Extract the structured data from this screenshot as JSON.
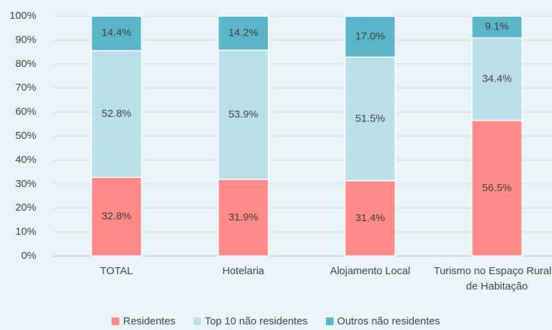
{
  "chart_data": {
    "type": "stacked_bar",
    "categories": [
      "TOTAL",
      "Hotelaria",
      "Alojamento Local",
      "Turismo no Espaço Rural e de Habitação"
    ],
    "series": [
      {
        "name": "Residentes",
        "color": "#ff8a8a",
        "values": [
          32.8,
          31.9,
          31.4,
          56.5
        ],
        "value_labels": [
          "32.8%",
          "31.9%",
          "31.4%",
          "56.5%"
        ]
      },
      {
        "name": "Top 10 não residentes",
        "color": "#b9dfe8",
        "values": [
          52.8,
          53.9,
          51.5,
          34.4
        ],
        "value_labels": [
          "52.8%",
          "53.9%",
          "51.5%",
          "34.4%"
        ]
      },
      {
        "name": "Outros não residentes",
        "color": "#5bb5c9",
        "values": [
          14.4,
          14.2,
          17.0,
          9.1
        ],
        "value_labels": [
          "14.4%",
          "14.2%",
          "17.0%",
          "9.1%"
        ]
      }
    ],
    "ylim": [
      0,
      100
    ],
    "yticks": [
      {
        "value": 0,
        "label": "0%"
      },
      {
        "value": 10,
        "label": "10%"
      },
      {
        "value": 20,
        "label": "20%"
      },
      {
        "value": 30,
        "label": "30%"
      },
      {
        "value": 40,
        "label": "40%"
      },
      {
        "value": 50,
        "label": "50%"
      },
      {
        "value": 60,
        "label": "60%"
      },
      {
        "value": 70,
        "label": "70%"
      },
      {
        "value": 80,
        "label": "80%"
      },
      {
        "value": 90,
        "label": "90%"
      },
      {
        "value": 100,
        "label": "100%"
      }
    ],
    "grid": true,
    "legend": "bottom"
  }
}
